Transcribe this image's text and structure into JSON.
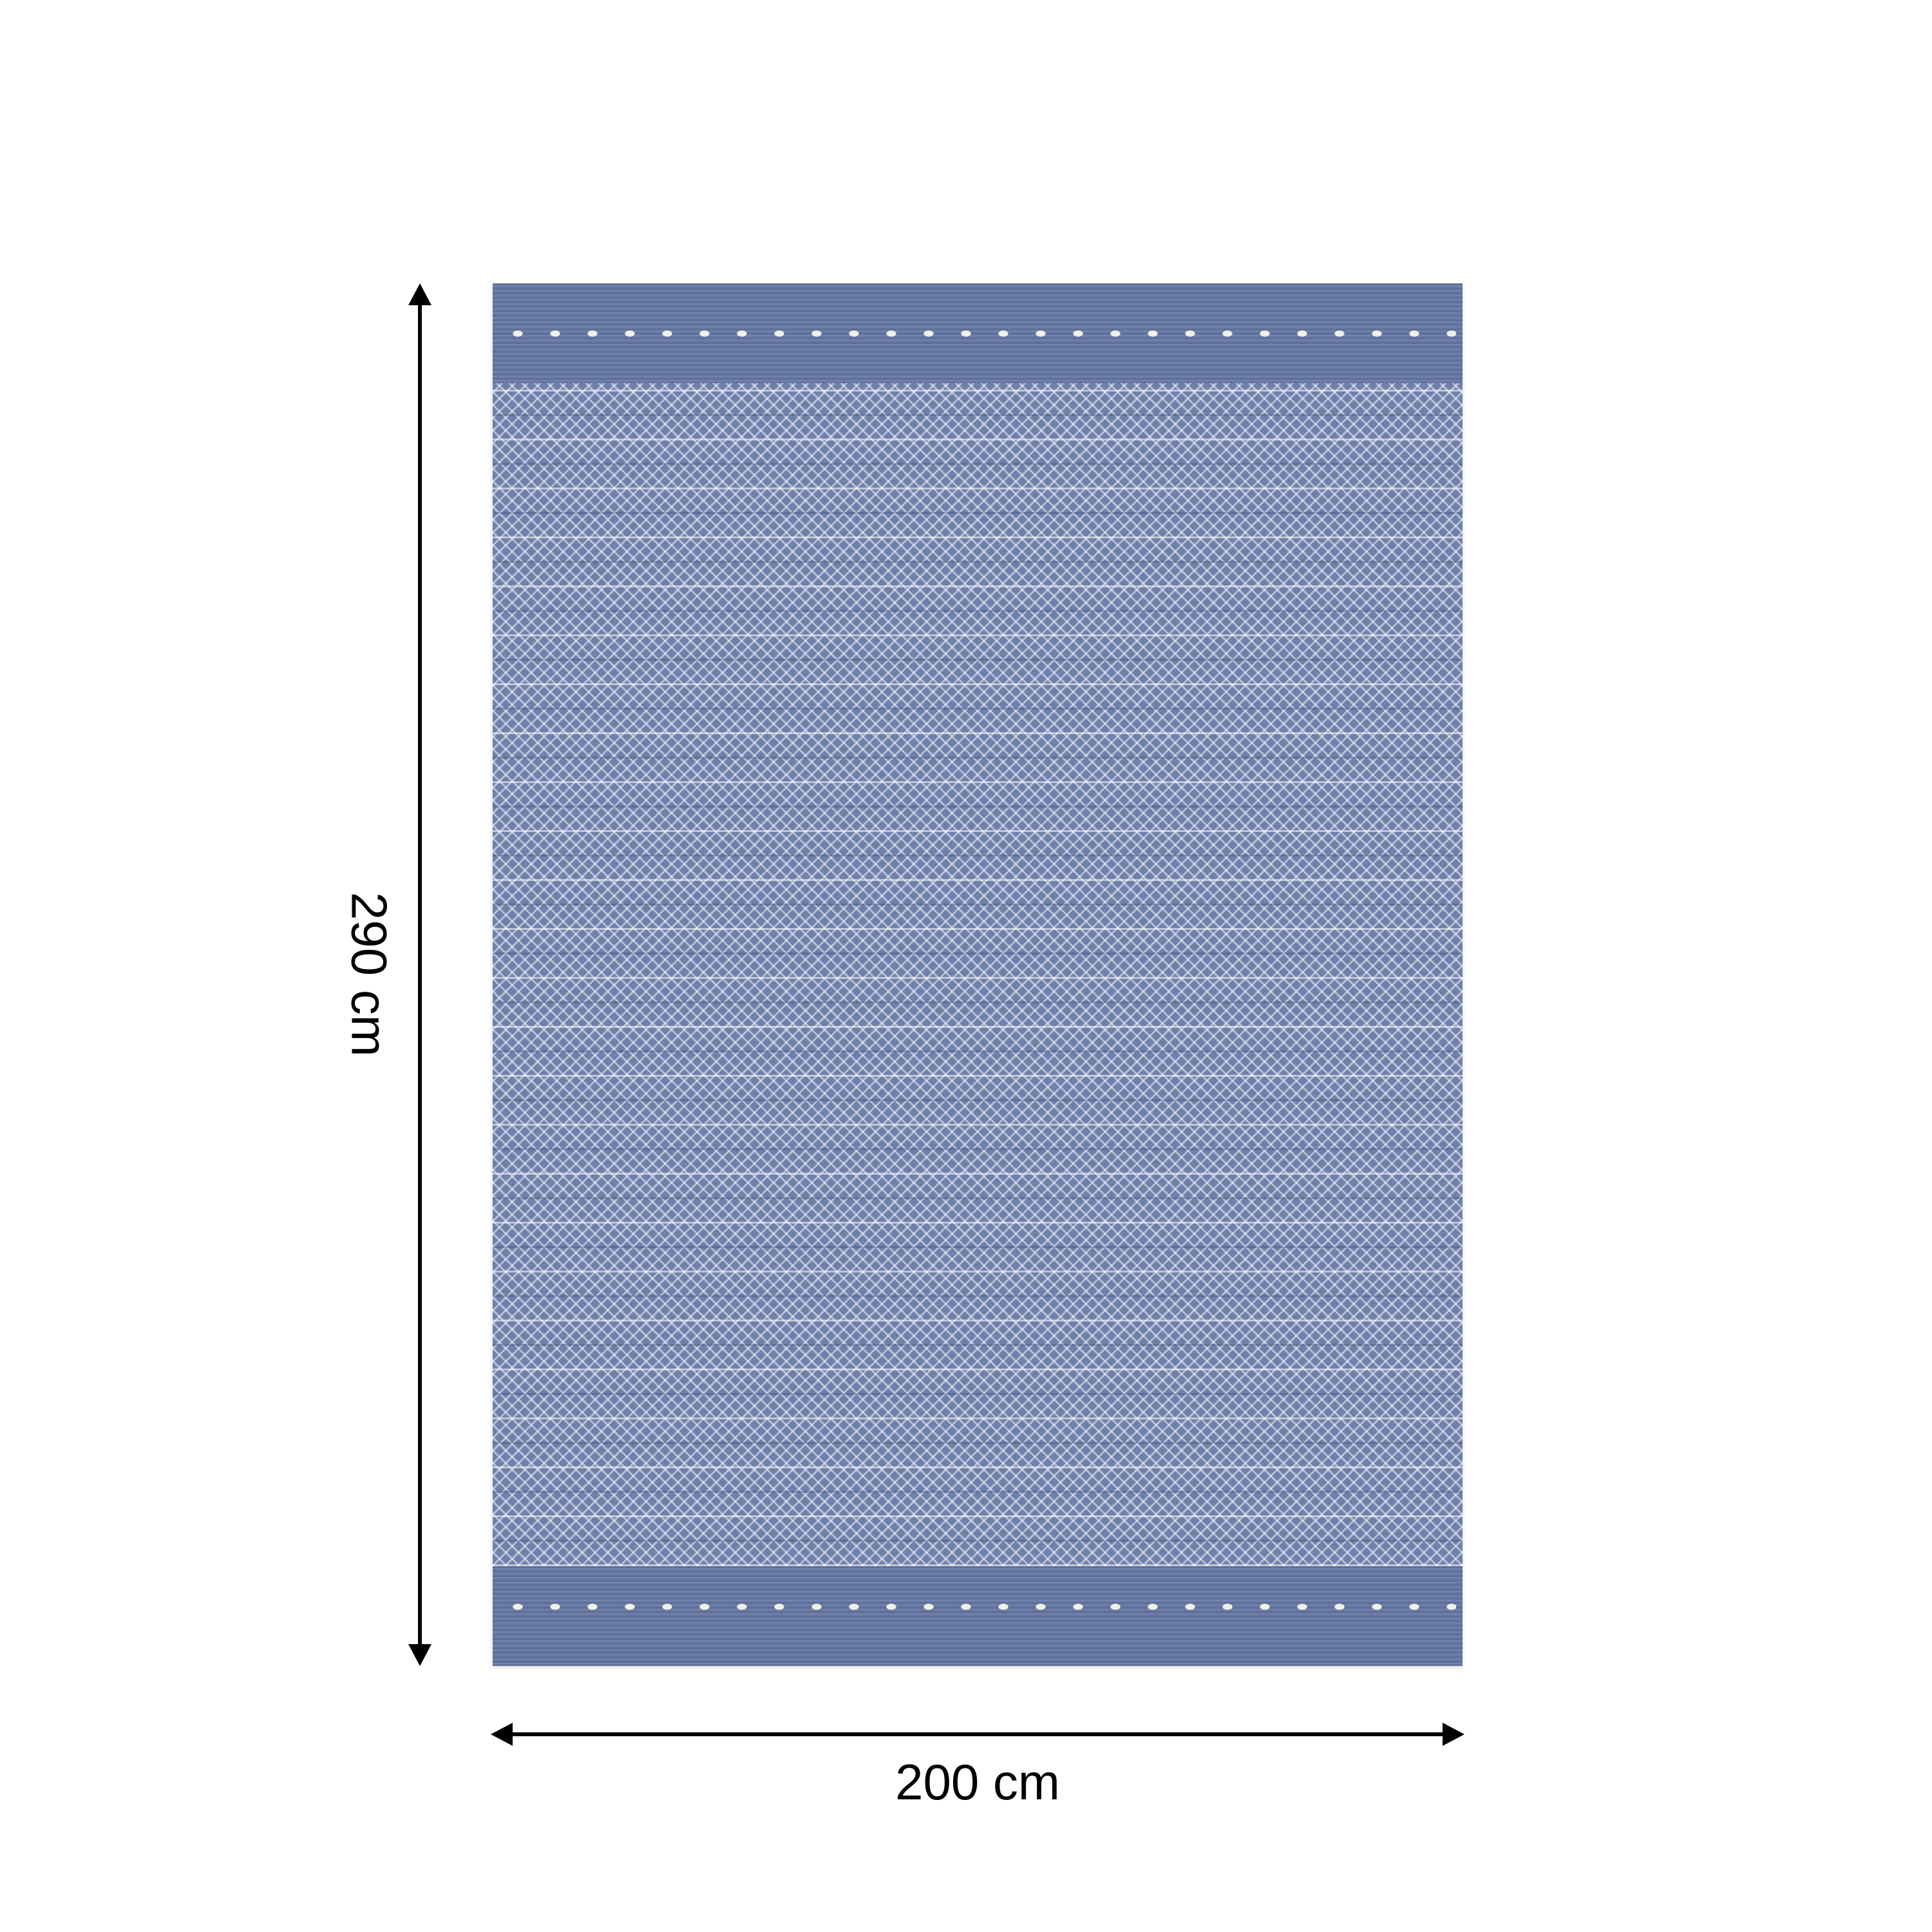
{
  "dimensions": {
    "width_label": "200 cm",
    "height_label": "290 cm"
  },
  "rug": {
    "base_color": "#6d7fa8",
    "pattern_color": "#f0f2fa",
    "stitch_color": "#f2f0e6"
  },
  "icons": {
    "vertical_arrow": "double-headed-arrow-vertical",
    "horizontal_arrow": "double-headed-arrow-horizontal"
  }
}
